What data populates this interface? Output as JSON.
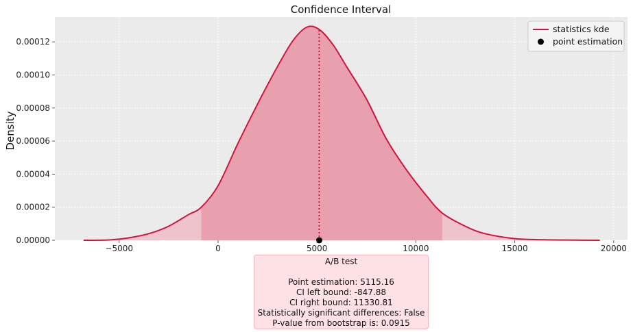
{
  "chart_data": {
    "type": "area",
    "title": "Confidence Interval",
    "xlabel": "",
    "ylabel": "Density",
    "xlim": [
      -8250,
      20700
    ],
    "ylim": [
      0,
      0.000135
    ],
    "grid": true,
    "legend_position": "top-right",
    "x_ticks": [
      -5000,
      0,
      5000,
      10000,
      15000,
      20000
    ],
    "x_tick_labels": [
      "−5000",
      "0",
      "5000",
      "10000",
      "15000",
      "20000"
    ],
    "y_ticks": [
      0,
      2e-05,
      4e-05,
      6e-05,
      8e-05,
      0.0001,
      0.00012
    ],
    "y_tick_labels": [
      "0.00000",
      "0.00002",
      "0.00004",
      "0.00006",
      "0.00008",
      "0.00010",
      "0.00012"
    ],
    "series": [
      {
        "name": "statistics kde",
        "kind": "line",
        "color": "#d0143c",
        "x": [
          -6800,
          -5500,
          -4500,
          -3500,
          -2500,
          -1500,
          -847.88,
          0,
          1000,
          2000,
          3000,
          3800,
          4500,
          5115.16,
          5800,
          6500,
          7500,
          8500,
          9500,
          10500,
          11330.81,
          12500,
          13500,
          15000,
          16500,
          18000,
          19300
        ],
        "y": [
          0,
          2e-07,
          1.5e-06,
          4e-06,
          8.5e-06,
          1.55e-05,
          2e-05,
          3.3e-05,
          5.85e-05,
          8.25e-05,
          0.000105,
          0.000121,
          0.000129,
          0.0001275,
          0.0001185,
          0.000105,
          8.55e-05,
          6.15e-05,
          4.3e-05,
          2.75e-05,
          1.65e-05,
          8.5e-06,
          4e-06,
          1e-06,
          3e-07,
          1e-07,
          0
        ]
      },
      {
        "name": "point estimation",
        "kind": "scatter",
        "color": "#000000",
        "x": [
          5115.16
        ],
        "y": [
          0
        ]
      }
    ],
    "shaded_interval": {
      "left": -847.88,
      "right": 11330.81,
      "color": "#e8a0ae"
    },
    "tail_fill_color": "#efc3cc",
    "point_estimate_line": {
      "x": 5115.16,
      "top": 0.0001275,
      "color": "#d0143c"
    },
    "plot_background": "#ebebeb"
  },
  "summary": {
    "heading": "A/B test",
    "point_estimation": "Point estimation: 5115.16",
    "ci_left": "CI left bound: -847.88",
    "ci_right": "CI right bound: 11330.81",
    "significance": "Statistically significant differences: False",
    "p_value": "P-value from bootstrap is: 0.0915"
  }
}
